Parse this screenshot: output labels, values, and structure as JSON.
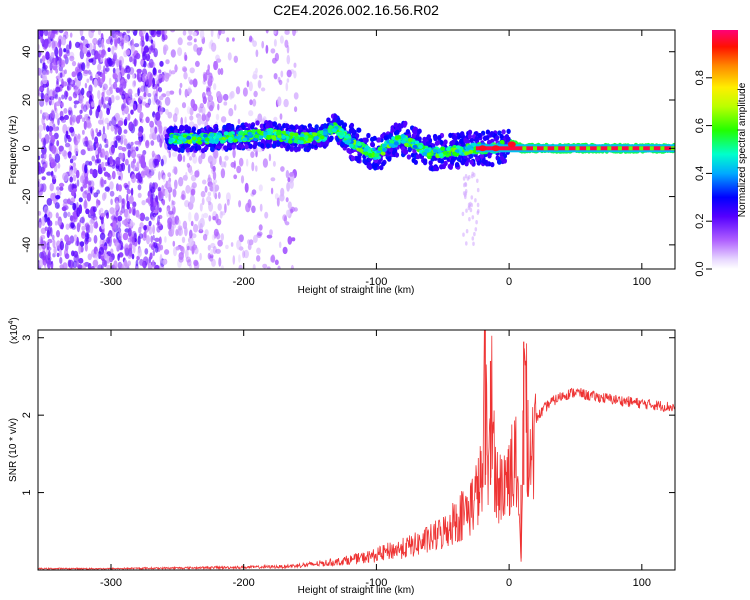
{
  "title": "C2E4.2026.002.16.56.R02",
  "chart_data": [
    {
      "type": "heatmap",
      "name": "spectrogram",
      "xlabel": "Height of straight line (km)",
      "ylabel": "Frequency (Hz)",
      "xlim": [
        -355,
        125
      ],
      "ylim": [
        -50,
        49
      ],
      "xticks": [
        -300,
        -200,
        -100,
        0,
        100
      ],
      "yticks": [
        -40,
        -20,
        0,
        20,
        40
      ],
      "colorbar": {
        "label": "Normalized spectral amplitude",
        "range": [
          0,
          1
        ],
        "ticks": [
          "0.0",
          "0.2",
          "0.4",
          "0.6",
          "0.8"
        ],
        "tick_values": [
          0,
          0.2,
          0.4,
          0.6,
          0.8
        ],
        "colors": [
          "#ffffff",
          "#cc99ff",
          "#8800ff",
          "#1a00ff",
          "#00bfff",
          "#00ffcc",
          "#33ff00",
          "#ccff00",
          "#ffdd00",
          "#ff6600",
          "#ff0000",
          "#ff0066"
        ]
      },
      "ridge": {
        "description": "signal frequency ridge vs height",
        "x": [
          -255,
          -230,
          -200,
          -180,
          -160,
          -140,
          -132,
          -120,
          -100,
          -90,
          -80,
          -60,
          -40,
          -25,
          -10,
          0,
          10,
          30,
          60,
          100,
          125
        ],
        "freq_hz": [
          4,
          4,
          5,
          6,
          4,
          5,
          9,
          3,
          -3,
          2,
          4,
          -2,
          -1,
          0,
          0,
          2,
          0,
          0,
          0,
          0,
          0
        ]
      }
    },
    {
      "type": "line",
      "name": "snr",
      "xlabel": "Height of straight line (km)",
      "ylabel": "SNR (10 * v/v)",
      "scale_label": "(x10",
      "scale_exponent": "4",
      "scale_suffix": ")",
      "xlim": [
        -355,
        125
      ],
      "ylim": [
        0,
        3.1
      ],
      "xticks": [
        -300,
        -200,
        -100,
        0,
        100
      ],
      "yticks": [
        1,
        2,
        3
      ],
      "series": [
        {
          "name": "SNR",
          "color": "#ee3333",
          "x": [
            -355,
            -300,
            -250,
            -200,
            -170,
            -150,
            -130,
            -110,
            -100,
            -90,
            -80,
            -70,
            -60,
            -50,
            -40,
            -30,
            -25,
            -20,
            -18,
            -16,
            -14,
            -10,
            -5,
            0,
            5,
            9,
            11,
            15,
            20,
            30,
            40,
            50,
            60,
            80,
            100,
            125
          ],
          "y": [
            0.02,
            0.02,
            0.03,
            0.04,
            0.05,
            0.08,
            0.12,
            0.18,
            0.22,
            0.28,
            0.32,
            0.38,
            0.45,
            0.55,
            0.75,
            0.9,
            1.1,
            1.35,
            3.1,
            1.0,
            2.7,
            1.3,
            1.2,
            1.45,
            1.6,
            0.15,
            2.95,
            1.7,
            1.95,
            2.15,
            2.25,
            2.3,
            2.25,
            2.2,
            2.15,
            2.1
          ]
        }
      ]
    }
  ]
}
